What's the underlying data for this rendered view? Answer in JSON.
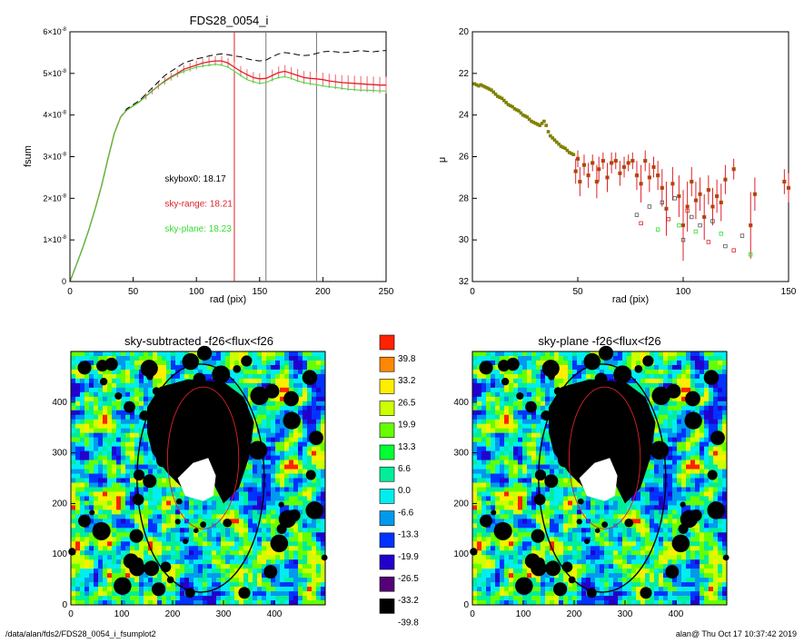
{
  "colors": {
    "skybox0": "#000000",
    "sky_range": "#e0202a",
    "sky_plane": "#33dd33",
    "olive_points": "#808000"
  },
  "footer": {
    "path": "/data/alan/fds2/FDS28_0054_i_fsumplot2",
    "user_time": "alan@  Thu Oct 17 10:37:42 2019"
  },
  "chart_data": [
    {
      "type": "line",
      "title": "FDS28_0054_i",
      "xlabel": "rad (pix)",
      "ylabel": "fsum",
      "xlim": [
        0,
        250
      ],
      "ylim": [
        0,
        6e-08
      ],
      "xticks": [
        "0",
        "50",
        "100",
        "150",
        "200",
        "250"
      ],
      "yticks": [
        {
          "value": 0,
          "mantissa": "0",
          "exp": ""
        },
        {
          "value": 1e-08,
          "mantissa": "1×10",
          "exp": "-8"
        },
        {
          "value": 2e-08,
          "mantissa": "2×10",
          "exp": "-8"
        },
        {
          "value": 3e-08,
          "mantissa": "3×10",
          "exp": "-8"
        },
        {
          "value": 4e-08,
          "mantissa": "4×10",
          "exp": "-8"
        },
        {
          "value": 5e-08,
          "mantissa": "5×10",
          "exp": "-8"
        },
        {
          "value": 6e-08,
          "mantissa": "6×10",
          "exp": "-8"
        }
      ],
      "vlines": [
        130,
        155,
        195
      ],
      "annotations": [
        {
          "text": "skybox0: 18.17",
          "color": "#000000",
          "x": 75,
          "y": 2.4e-08
        },
        {
          "text": "sky-range: 18.21",
          "color": "#e0202a",
          "x": 75,
          "y": 1.8e-08
        },
        {
          "text": "sky-plane: 18.23",
          "color": "#33dd33",
          "x": 75,
          "y": 1.2e-08
        }
      ],
      "x": [
        0,
        5,
        10,
        15,
        20,
        25,
        30,
        35,
        40,
        45,
        50,
        55,
        60,
        65,
        70,
        75,
        80,
        85,
        90,
        95,
        100,
        105,
        110,
        115,
        120,
        125,
        130,
        135,
        140,
        145,
        150,
        155,
        160,
        165,
        170,
        175,
        180,
        185,
        190,
        195,
        200,
        205,
        210,
        215,
        220,
        225,
        230,
        235,
        240,
        245,
        250
      ],
      "series": [
        {
          "name": "skybox0",
          "style": "dashed",
          "color": "#000000",
          "values": [
            0,
            4e-09,
            8e-09,
            1.25e-08,
            1.75e-08,
            2.3e-08,
            2.95e-08,
            3.55e-08,
            3.95e-08,
            4.15e-08,
            4.25e-08,
            4.35e-08,
            4.5e-08,
            4.65e-08,
            4.8e-08,
            4.95e-08,
            5.05e-08,
            5.15e-08,
            5.25e-08,
            5.3e-08,
            5.35e-08,
            5.38e-08,
            5.42e-08,
            5.45e-08,
            5.47e-08,
            5.45e-08,
            5.42e-08,
            5.4e-08,
            5.35e-08,
            5.32e-08,
            5.3e-08,
            5.32e-08,
            5.4e-08,
            5.47e-08,
            5.5e-08,
            5.48e-08,
            5.45e-08,
            5.43e-08,
            5.44e-08,
            5.48e-08,
            5.52e-08,
            5.53e-08,
            5.52e-08,
            5.5e-08,
            5.51e-08,
            5.53e-08,
            5.55e-08,
            5.53e-08,
            5.52e-08,
            5.54e-08,
            5.55e-08
          ]
        },
        {
          "name": "sky-range",
          "style": "errorbar",
          "color": "#e0202a",
          "values": [
            0,
            4e-09,
            8e-09,
            1.25e-08,
            1.75e-08,
            2.3e-08,
            2.95e-08,
            3.55e-08,
            3.95e-08,
            4.12e-08,
            4.22e-08,
            4.32e-08,
            4.45e-08,
            4.58e-08,
            4.7e-08,
            4.82e-08,
            4.92e-08,
            5e-08,
            5.1e-08,
            5.15e-08,
            5.2e-08,
            5.25e-08,
            5.28e-08,
            5.3e-08,
            5.3e-08,
            5.25e-08,
            5.15e-08,
            5.05e-08,
            4.97e-08,
            4.9e-08,
            4.87e-08,
            4.88e-08,
            4.95e-08,
            5.02e-08,
            5.05e-08,
            5e-08,
            4.95e-08,
            4.9e-08,
            4.88e-08,
            4.87e-08,
            4.85e-08,
            4.82e-08,
            4.8e-08,
            4.78e-08,
            4.77e-08,
            4.76e-08,
            4.75e-08,
            4.74e-08,
            4.73e-08,
            4.72e-08,
            4.72e-08
          ]
        },
        {
          "name": "sky-plane",
          "style": "solid",
          "color": "#33dd33",
          "values": [
            0,
            4e-09,
            8e-09,
            1.25e-08,
            1.75e-08,
            2.3e-08,
            2.95e-08,
            3.55e-08,
            3.95e-08,
            4.12e-08,
            4.22e-08,
            4.32e-08,
            4.45e-08,
            4.58e-08,
            4.7e-08,
            4.8e-08,
            4.9e-08,
            4.98e-08,
            5.05e-08,
            5.1e-08,
            5.15e-08,
            5.18e-08,
            5.2e-08,
            5.22e-08,
            5.2e-08,
            5.15e-08,
            5.05e-08,
            4.95e-08,
            4.85e-08,
            4.8e-08,
            4.76e-08,
            4.78e-08,
            4.85e-08,
            4.9e-08,
            4.92e-08,
            4.88e-08,
            4.82e-08,
            4.78e-08,
            4.75e-08,
            4.73e-08,
            4.7e-08,
            4.68e-08,
            4.66e-08,
            4.64e-08,
            4.62e-08,
            4.61e-08,
            4.6e-08,
            4.6e-08,
            4.59e-08,
            4.58e-08,
            4.58e-08
          ]
        }
      ]
    },
    {
      "type": "scatter",
      "title": "",
      "xlabel": "rad (pix)",
      "ylabel": "μ",
      "xlim": [
        0,
        150
      ],
      "ylim": [
        32,
        20
      ],
      "reversed_y": true,
      "xticks": [
        "0",
        "50",
        "100",
        "150"
      ],
      "yticks": [
        "20",
        "22",
        "24",
        "26",
        "28",
        "30",
        "32"
      ],
      "olive_points": {
        "x": [
          1,
          2,
          3,
          4,
          5,
          6,
          7,
          8,
          9,
          10,
          11,
          12,
          13,
          14,
          15,
          16,
          17,
          18,
          19,
          20,
          21,
          22,
          23,
          24,
          25,
          26,
          27,
          28,
          29,
          30,
          31,
          32,
          33,
          34,
          35,
          36,
          37,
          38,
          39,
          40,
          41,
          42,
          43,
          44,
          45,
          46,
          47,
          48
        ],
        "y": [
          22.5,
          22.55,
          22.6,
          22.55,
          22.6,
          22.65,
          22.7,
          22.75,
          22.8,
          22.9,
          23.0,
          23.1,
          23.15,
          23.2,
          23.3,
          23.4,
          23.5,
          23.55,
          23.6,
          23.7,
          23.75,
          23.8,
          23.9,
          24.0,
          24.05,
          24.1,
          24.2,
          24.3,
          24.35,
          24.4,
          24.45,
          24.5,
          24.4,
          24.3,
          24.5,
          24.8,
          25.0,
          25.1,
          25.2,
          25.3,
          25.4,
          25.5,
          25.55,
          25.6,
          25.7,
          25.8,
          25.85,
          25.9
        ]
      },
      "red_points": {
        "x": [
          49,
          50,
          51,
          53,
          55,
          57,
          59,
          60,
          62,
          64,
          66,
          68,
          70,
          72,
          74,
          76,
          78,
          80,
          82,
          84,
          86,
          88,
          90,
          92,
          95,
          98,
          100,
          102,
          104,
          106,
          108,
          110,
          112,
          114,
          116,
          118,
          120,
          124,
          132,
          134,
          148,
          150
        ],
        "y": [
          26.7,
          26.1,
          27.2,
          26.4,
          26.9,
          26.3,
          27.2,
          26.6,
          26.2,
          27.0,
          26.3,
          26.2,
          26.8,
          26.5,
          26.3,
          26.2,
          26.9,
          27.3,
          26.2,
          27.0,
          26.5,
          26.9,
          27.5,
          28.5,
          27.3,
          27.9,
          29.3,
          28.4,
          27.2,
          28.1,
          27.8,
          28.9,
          27.6,
          28.4,
          27.9,
          28.2,
          27.1,
          26.6,
          29.3,
          27.8,
          27.2,
          27.5
        ],
        "err": [
          0.6,
          0.4,
          0.7,
          0.5,
          0.6,
          0.4,
          0.8,
          0.6,
          0.4,
          0.7,
          0.5,
          0.4,
          0.6,
          0.5,
          0.4,
          0.4,
          0.7,
          0.9,
          0.5,
          0.7,
          0.5,
          0.7,
          0.9,
          1.3,
          0.8,
          1.0,
          1.7,
          1.2,
          0.7,
          0.9,
          0.8,
          1.1,
          0.7,
          0.9,
          0.8,
          0.9,
          0.7,
          0.5,
          1.6,
          0.8,
          0.6,
          0.7
        ]
      },
      "open_points": {
        "x": [
          78,
          80,
          84,
          88,
          90,
          93,
          96,
          98,
          100,
          102,
          104,
          106,
          108,
          112,
          114,
          118,
          120,
          124,
          128,
          132
        ],
        "y": [
          28.8,
          29.2,
          28.4,
          29.5,
          28.2,
          29.0,
          28.0,
          29.3,
          30.0,
          28.6,
          28.9,
          29.6,
          29.3,
          30.1,
          29.1,
          29.7,
          30.3,
          30.5,
          29.8,
          30.7
        ],
        "colors": [
          "#555555",
          "#e0202a",
          "#555555",
          "#33dd33",
          "#555555",
          "#e0202a",
          "#555555",
          "#33dd33",
          "#555555",
          "#e0202a",
          "#555555",
          "#33dd33",
          "#555555",
          "#e0202a",
          "#555555",
          "#33dd33",
          "#555555",
          "#e0202a",
          "#555555",
          "#33dd33"
        ]
      }
    },
    {
      "type": "heatmap",
      "title": "sky-subtracted -f26<flux<f26",
      "xlim": [
        0,
        500
      ],
      "ylim": [
        0,
        500
      ],
      "xticks": [
        "0",
        "100",
        "200",
        "300",
        "400"
      ],
      "yticks": [
        "0",
        "100",
        "200",
        "300",
        "400"
      ],
      "ellipses": [
        {
          "cx": 255,
          "cy": 250,
          "rx": 125,
          "ry": 225,
          "color": "#000000"
        },
        {
          "cx": 260,
          "cy": 290,
          "rx": 70,
          "ry": 140,
          "color": "#e0202a"
        }
      ]
    },
    {
      "type": "heatmap",
      "title": "sky-plane -f26<flux<f26",
      "xlim": [
        0,
        500
      ],
      "ylim": [
        0,
        500
      ],
      "xticks": [
        "0",
        "100",
        "200",
        "300",
        "400"
      ],
      "yticks": [
        "0",
        "100",
        "200",
        "300",
        "400"
      ],
      "ellipses": [
        {
          "cx": 255,
          "cy": 250,
          "rx": 125,
          "ry": 225,
          "color": "#000000"
        },
        {
          "cx": 260,
          "cy": 290,
          "rx": 70,
          "ry": 140,
          "color": "#e0202a"
        }
      ]
    },
    {
      "type": "colorbar",
      "labels": [
        "39.8",
        "33.2",
        "26.5",
        "19.9",
        "13.3",
        "6.6",
        "0.0",
        "-6.6",
        "-13.3",
        "-19.9",
        "-26.5",
        "-33.2",
        "-39.8"
      ],
      "colors": [
        "#ff2200",
        "#ff8800",
        "#ffee00",
        "#ccff00",
        "#66ff00",
        "#00ff33",
        "#00ee99",
        "#00eeee",
        "#0099ee",
        "#0033ff",
        "#2200cc",
        "#550077",
        "#000000"
      ]
    }
  ]
}
